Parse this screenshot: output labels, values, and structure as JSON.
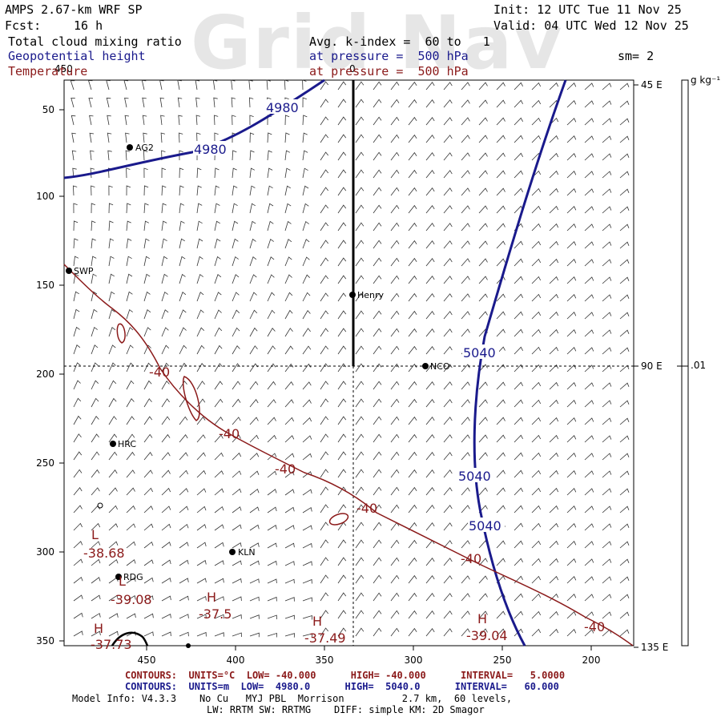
{
  "header": {
    "model": "AMPS 2.67-km WRF SP",
    "forecast_label": "Fcst:",
    "forecast_value": "16 h",
    "init": "Init: 12 UTC Tue 11 Nov 25",
    "valid": "Valid: 04 UTC Wed 12 Nov 25",
    "watermark": "Grid Nav"
  },
  "fields": {
    "field1": "Total cloud mixing ratio",
    "field2": "Geopotential height",
    "field3": "Temperature",
    "avg_label": "Avg. k-index =  60 to   1",
    "pressure1": "at pressure =  500 hPa",
    "pressure2": "at pressure =  500 hPa",
    "smoothing": "sm= 2"
  },
  "axes": {
    "y_ticks": [
      "50",
      "100",
      "150",
      "200",
      "250",
      "300",
      "350"
    ],
    "x_ticks": [
      "450",
      "400",
      "350",
      "300",
      "250",
      "200"
    ],
    "right_labels": [
      "45 E",
      "90 E",
      "135 E"
    ],
    "top_marker": "450",
    "top_center_marker": "0",
    "colorbar_unit": "g kg⁻¹",
    "colorbar_value": ".01"
  },
  "stations": [
    {
      "name": "AG2"
    },
    {
      "name": "SWP"
    },
    {
      "name": "Henry"
    },
    {
      "name": "NCO"
    },
    {
      "name": "HRC"
    },
    {
      "name": "KLN"
    },
    {
      "name": "RDG"
    }
  ],
  "height_labels": [
    "4980",
    "4980",
    "5040",
    "5040",
    "5040"
  ],
  "temp_labels": [
    "-40",
    "-40",
    "-40",
    "-40",
    "-40",
    "-40"
  ],
  "extrema": [
    {
      "symbol": "L",
      "value": "-38.68"
    },
    {
      "symbol": "L",
      "value": "-39.08"
    },
    {
      "symbol": "H",
      "value": "-37.5"
    },
    {
      "symbol": "H",
      "value": "-37.49"
    },
    {
      "symbol": "H",
      "value": "-39.04"
    },
    {
      "symbol": "H",
      "value": "-37.73"
    }
  ],
  "footer": {
    "temp_contours": "CONTOURS:  UNITS=°C  LOW= -40.000      HIGH= -40.000      INTERVAL=   5.0000",
    "height_contours": "CONTOURS:  UNITS=m  LOW=  4980.0      HIGH=  5040.0      INTERVAL=   60.000",
    "model_info": "Model Info: V4.3.3    No Cu   MYJ PBL  Morrison          2.7 km,  60 levels,",
    "model_info2": "LW: RRTM SW: RRTMG    DIFF: simple KM: 2D Smagor"
  },
  "colors": {
    "height_contour": "#1a1a8c",
    "temperature_contour": "#8b1a1a",
    "barbs": "#000000"
  }
}
